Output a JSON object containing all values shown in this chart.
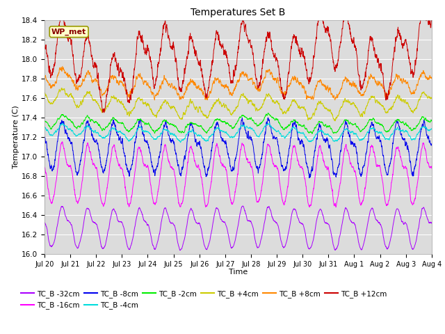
{
  "title": "Temperatures Set B",
  "xlabel": "Time",
  "ylabel": "Temperature (C)",
  "ylim": [
    16.0,
    18.4
  ],
  "yticks": [
    16.0,
    16.2,
    16.4,
    16.6,
    16.8,
    17.0,
    17.2,
    17.4,
    17.6,
    17.8,
    18.0,
    18.2,
    18.4
  ],
  "bg_color": "#dcdcdc",
  "wp_met_text": "WP_met",
  "series": [
    {
      "label": "TC_B -32cm",
      "color": "#aa00ff",
      "base": 16.27,
      "amp": 0.18,
      "noise_amp": 0.015,
      "smooth": 8
    },
    {
      "label": "TC_B -16cm",
      "color": "#ff00ff",
      "base": 16.82,
      "amp": 0.26,
      "noise_amp": 0.025,
      "smooth": 6
    },
    {
      "label": "TC_B -8cm",
      "color": "#0000ee",
      "base": 17.1,
      "amp": 0.22,
      "noise_amp": 0.035,
      "smooth": 5
    },
    {
      "label": "TC_B -4cm",
      "color": "#00dddd",
      "base": 17.24,
      "amp": 0.1,
      "noise_amp": 0.02,
      "smooth": 8
    },
    {
      "label": "TC_B -2cm",
      "color": "#00ee00",
      "base": 17.33,
      "amp": 0.1,
      "noise_amp": 0.02,
      "smooth": 8
    },
    {
      "label": "TC_B +4cm",
      "color": "#cccc00",
      "base": 17.58,
      "amp": 0.12,
      "noise_amp": 0.025,
      "smooth": 6
    },
    {
      "label": "TC_B +8cm",
      "color": "#ff8800",
      "base": 17.76,
      "amp": 0.14,
      "noise_amp": 0.03,
      "smooth": 5
    },
    {
      "label": "TC_B +12cm",
      "color": "#cc0000",
      "base": 17.95,
      "amp": 0.26,
      "noise_amp": 0.045,
      "smooth": 4
    }
  ],
  "n_days": 16,
  "n_points": 3072,
  "xtick_labels": [
    "Jul 20",
    "Jul 21",
    "Jul 22",
    "Jul 23",
    "Jul 24",
    "Jul 25",
    "Jul 26",
    "Jul 27",
    "Jul 28",
    "Jul 29",
    "Jul 30",
    "Jul 31",
    "Aug 1",
    "Aug 2",
    "Aug 3",
    "Aug 4"
  ],
  "xtick_positions": [
    0,
    1,
    2,
    3,
    4,
    5,
    6,
    7,
    8,
    9,
    10,
    11,
    12,
    13,
    14,
    15
  ],
  "figsize": [
    6.4,
    4.8
  ],
  "dpi": 100
}
